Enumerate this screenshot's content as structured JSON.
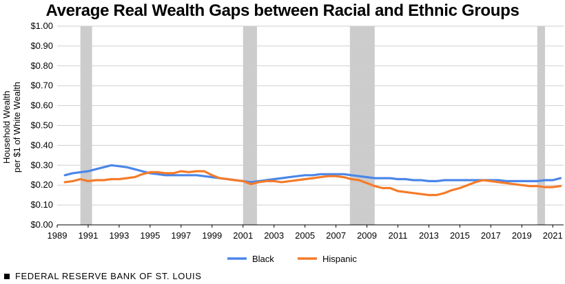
{
  "chart_data": {
    "type": "line",
    "title": "Average Real Wealth Gaps between Racial and Ethnic Groups",
    "ylabel_lines": [
      "Household Wealth",
      "per $1 of White Wealth"
    ],
    "xlabel": "",
    "xlim": [
      1989,
      2021.7
    ],
    "ylim": [
      0,
      1
    ],
    "x_ticks": [
      1989,
      1991,
      1993,
      1995,
      1997,
      1999,
      2001,
      2003,
      2005,
      2007,
      2009,
      2011,
      2013,
      2015,
      2017,
      2019,
      2021
    ],
    "y_ticks": [
      0,
      0.1,
      0.2,
      0.3,
      0.4,
      0.5,
      0.6,
      0.7,
      0.8,
      0.9,
      1.0
    ],
    "y_tick_labels": [
      "$0.00",
      "$0.10",
      "$0.20",
      "$0.30",
      "$0.40",
      "$0.50",
      "$0.60",
      "$0.70",
      "$0.80",
      "$0.90",
      "$1.00"
    ],
    "grid": true,
    "legend_position": "bottom-center",
    "recessions": [
      [
        1990.5,
        1991.25
      ],
      [
        2001.0,
        2001.9
      ],
      [
        2007.9,
        2009.5
      ],
      [
        2020.0,
        2020.5
      ]
    ],
    "series": [
      {
        "name": "Black",
        "color": "#4a86e8",
        "x": [
          1989.5,
          1990,
          1990.5,
          1991,
          1991.5,
          1992,
          1992.5,
          1993,
          1993.5,
          1994,
          1994.5,
          1995,
          1995.5,
          1996,
          1996.5,
          1997,
          1997.5,
          1998,
          1998.5,
          1999,
          1999.5,
          2000,
          2000.5,
          2001,
          2001.5,
          2002,
          2002.5,
          2003,
          2003.5,
          2004,
          2004.5,
          2005,
          2005.5,
          2006,
          2006.5,
          2007,
          2007.5,
          2008,
          2008.5,
          2009,
          2009.5,
          2010,
          2010.5,
          2011,
          2011.5,
          2012,
          2012.5,
          2013,
          2013.5,
          2014,
          2014.5,
          2015,
          2015.5,
          2016,
          2016.5,
          2017,
          2017.5,
          2018,
          2018.5,
          2019,
          2019.5,
          2020,
          2020.5,
          2021,
          2021.5
        ],
        "values": [
          0.25,
          0.26,
          0.265,
          0.27,
          0.28,
          0.29,
          0.3,
          0.295,
          0.29,
          0.28,
          0.27,
          0.26,
          0.255,
          0.25,
          0.25,
          0.25,
          0.25,
          0.25,
          0.245,
          0.24,
          0.235,
          0.23,
          0.225,
          0.22,
          0.215,
          0.22,
          0.225,
          0.23,
          0.235,
          0.24,
          0.245,
          0.25,
          0.25,
          0.255,
          0.255,
          0.255,
          0.255,
          0.25,
          0.245,
          0.24,
          0.235,
          0.235,
          0.235,
          0.23,
          0.23,
          0.225,
          0.225,
          0.22,
          0.22,
          0.225,
          0.225,
          0.225,
          0.225,
          0.225,
          0.225,
          0.225,
          0.225,
          0.22,
          0.22,
          0.22,
          0.22,
          0.22,
          0.225,
          0.225,
          0.235
        ]
      },
      {
        "name": "Hispanic",
        "color": "#f47b2a",
        "x": [
          1989.5,
          1990,
          1990.5,
          1991,
          1991.5,
          1992,
          1992.5,
          1993,
          1993.5,
          1994,
          1994.5,
          1995,
          1995.5,
          1996,
          1996.5,
          1997,
          1997.5,
          1998,
          1998.5,
          1999,
          1999.5,
          2000,
          2000.5,
          2001,
          2001.5,
          2002,
          2002.5,
          2003,
          2003.5,
          2004,
          2004.5,
          2005,
          2005.5,
          2006,
          2006.5,
          2007,
          2007.5,
          2008,
          2008.5,
          2009,
          2009.5,
          2010,
          2010.5,
          2011,
          2011.5,
          2012,
          2012.5,
          2013,
          2013.5,
          2014,
          2014.5,
          2015,
          2015.5,
          2016,
          2016.5,
          2017,
          2017.5,
          2018,
          2018.5,
          2019,
          2019.5,
          2020,
          2020.5,
          2021,
          2021.5
        ],
        "values": [
          0.215,
          0.22,
          0.23,
          0.22,
          0.225,
          0.225,
          0.23,
          0.23,
          0.235,
          0.24,
          0.255,
          0.265,
          0.265,
          0.26,
          0.26,
          0.27,
          0.265,
          0.27,
          0.27,
          0.25,
          0.235,
          0.23,
          0.225,
          0.22,
          0.205,
          0.215,
          0.22,
          0.22,
          0.215,
          0.22,
          0.225,
          0.23,
          0.235,
          0.24,
          0.245,
          0.245,
          0.24,
          0.23,
          0.225,
          0.21,
          0.195,
          0.185,
          0.185,
          0.17,
          0.165,
          0.16,
          0.155,
          0.15,
          0.15,
          0.16,
          0.175,
          0.185,
          0.2,
          0.215,
          0.225,
          0.22,
          0.215,
          0.21,
          0.205,
          0.2,
          0.195,
          0.195,
          0.19,
          0.19,
          0.195
        ]
      }
    ]
  },
  "footer": {
    "text": "FEDERAL RESERVE BANK OF ST. LOUIS"
  }
}
